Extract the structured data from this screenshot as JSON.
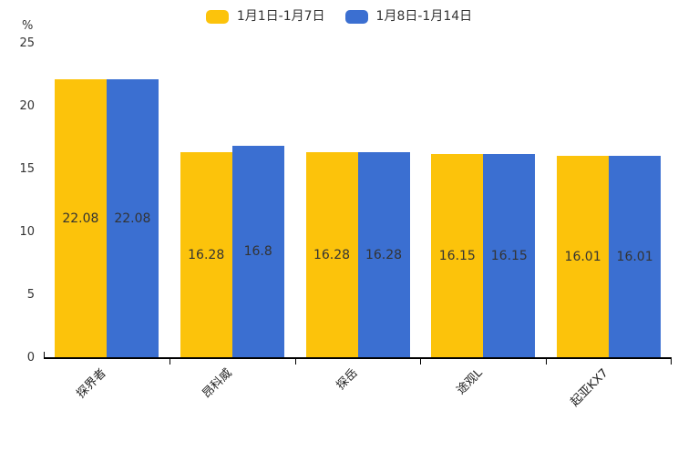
{
  "chart_data": {
    "type": "bar",
    "title": "",
    "unit_label": "%",
    "categories": [
      "探界者",
      "昂科威",
      "探岳",
      "途观L",
      "起亚KX7"
    ],
    "series": [
      {
        "name": "1月1日-1月7日",
        "color": "#FCC30B",
        "values": [
          22.08,
          16.28,
          16.28,
          16.15,
          16.01
        ]
      },
      {
        "name": "1月8日-1月14日",
        "color": "#3B6FD1",
        "values": [
          22.08,
          16.8,
          16.28,
          16.15,
          16.01
        ]
      }
    ],
    "value_labels": [
      "22.08",
      "16.28",
      "16.28",
      "16.15",
      "16.01",
      "22.08",
      "16.8",
      "16.28",
      "16.15",
      "16.01"
    ],
    "ylim": [
      0,
      25
    ],
    "y_ticks": [
      0,
      5,
      10,
      15,
      20,
      25
    ],
    "xlabel": "",
    "ylabel": "%",
    "grid": false,
    "legend_position": "top-center",
    "value_label_position": "inside-middle",
    "x_tick_label_rotation_deg": 45,
    "axis_color": "#000000",
    "text_color": "#333333",
    "background_color": "#ffffff"
  }
}
